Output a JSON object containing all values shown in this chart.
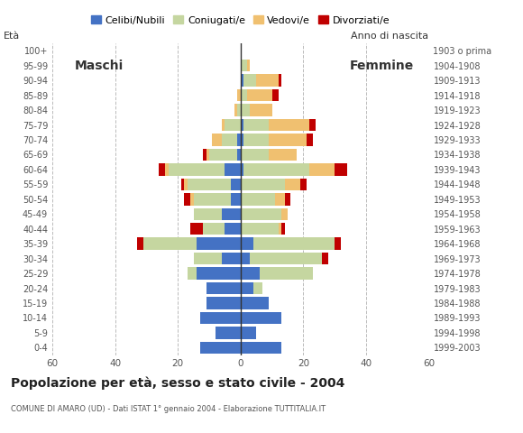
{
  "age_groups": [
    "0-4",
    "5-9",
    "10-14",
    "15-19",
    "20-24",
    "25-29",
    "30-34",
    "35-39",
    "40-44",
    "45-49",
    "50-54",
    "55-59",
    "60-64",
    "65-69",
    "70-74",
    "75-79",
    "80-84",
    "85-89",
    "90-94",
    "95-99",
    "100+"
  ],
  "birth_years": [
    "1999-2003",
    "1994-1998",
    "1989-1993",
    "1984-1988",
    "1979-1983",
    "1974-1978",
    "1969-1973",
    "1964-1968",
    "1959-1963",
    "1954-1958",
    "1949-1953",
    "1944-1948",
    "1939-1943",
    "1934-1938",
    "1929-1933",
    "1924-1928",
    "1919-1923",
    "1914-1918",
    "1909-1913",
    "1904-1908",
    "1903 o prima"
  ],
  "male": {
    "celibi": [
      13,
      8,
      13,
      11,
      11,
      14,
      6,
      14,
      5,
      6,
      3,
      3,
      5,
      1,
      1,
      0,
      0,
      0,
      0,
      0,
      0
    ],
    "coniugati": [
      0,
      0,
      0,
      0,
      0,
      3,
      9,
      17,
      7,
      9,
      12,
      14,
      18,
      9,
      5,
      5,
      1,
      0,
      0,
      0,
      0
    ],
    "vedovi": [
      0,
      0,
      0,
      0,
      0,
      0,
      0,
      0,
      0,
      0,
      1,
      1,
      1,
      1,
      3,
      1,
      1,
      1,
      0,
      0,
      0
    ],
    "divorziati": [
      0,
      0,
      0,
      0,
      0,
      0,
      0,
      2,
      4,
      0,
      2,
      1,
      2,
      1,
      0,
      0,
      0,
      0,
      0,
      0,
      0
    ]
  },
  "female": {
    "nubili": [
      13,
      5,
      13,
      9,
      4,
      6,
      3,
      4,
      0,
      0,
      0,
      0,
      1,
      0,
      1,
      1,
      0,
      0,
      1,
      0,
      0
    ],
    "coniugate": [
      0,
      0,
      0,
      0,
      3,
      17,
      23,
      26,
      12,
      13,
      11,
      14,
      21,
      9,
      8,
      8,
      3,
      2,
      4,
      2,
      0
    ],
    "vedove": [
      0,
      0,
      0,
      0,
      0,
      0,
      0,
      0,
      1,
      2,
      3,
      5,
      8,
      9,
      12,
      13,
      7,
      8,
      7,
      1,
      0
    ],
    "divorziate": [
      0,
      0,
      0,
      0,
      0,
      0,
      2,
      2,
      1,
      0,
      2,
      2,
      4,
      0,
      2,
      2,
      0,
      2,
      1,
      0,
      0
    ]
  },
  "colors": {
    "celibi": "#4472c4",
    "coniugati": "#c5d6a0",
    "vedovi": "#f0c070",
    "divorziati": "#c00000"
  },
  "title": "Popolazione per età, sesso e stato civile - 2004",
  "subtitle": "COMUNE DI AMARO (UD) - Dati ISTAT 1° gennaio 2004 - Elaborazione TUTTITALIA.IT",
  "legend_labels": [
    "Celibi/Nubili",
    "Coniugati/e",
    "Vedovi/e",
    "Divorziati/e"
  ],
  "xlabel_left": "Maschi",
  "xlabel_right": "Femmine",
  "ylabel_left": "À",
  "ylabel_right": "Anno di nascita",
  "xlim": 60,
  "background_color": "#ffffff"
}
